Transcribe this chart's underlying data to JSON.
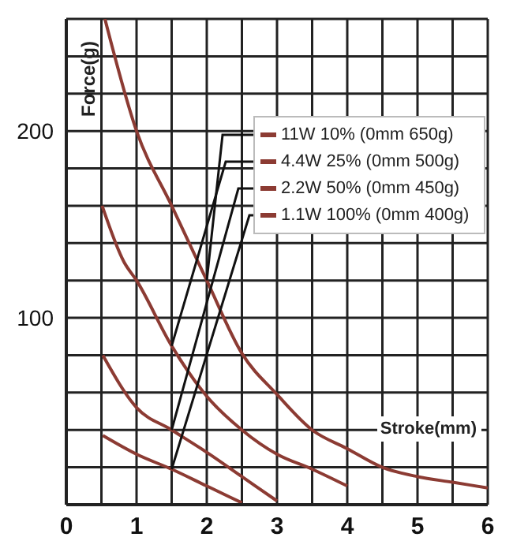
{
  "chart_data": {
    "type": "line",
    "xlabel": "Stroke(mm)",
    "ylabel": "Force(g)",
    "xlim": [
      0,
      6
    ],
    "ylim": [
      0,
      260
    ],
    "xticks": [
      0,
      {
        "value": 0.5,
        "label": null
      },
      1,
      {
        "value": 1.5,
        "label": null
      },
      2,
      {
        "value": 2.5,
        "label": null
      },
      3,
      {
        "value": 3.5,
        "label": null
      },
      4,
      {
        "value": 4.5,
        "label": null
      },
      5,
      {
        "value": 5.5,
        "label": null
      },
      6
    ],
    "yticks": [
      {
        "value": 0,
        "label": null
      },
      {
        "value": 20,
        "label": null
      },
      {
        "value": 40,
        "label": null
      },
      {
        "value": 60,
        "label": null
      },
      {
        "value": 80,
        "label": null
      },
      100,
      {
        "value": 120,
        "label": null
      },
      {
        "value": 140,
        "label": null
      },
      {
        "value": 160,
        "label": null
      },
      {
        "value": 180,
        "label": null
      },
      200,
      {
        "value": 220,
        "label": null
      },
      {
        "value": 240,
        "label": null
      },
      {
        "value": 260,
        "label": null
      }
    ],
    "grid": true,
    "legend": "top right",
    "series": [
      {
        "name": "11W 10% (0mm 650g)",
        "color": "#8c3b33",
        "x": [
          0.55,
          1,
          1.5,
          2,
          2.5,
          3,
          3.5,
          4,
          4.5,
          5,
          5.5,
          6
        ],
        "values": [
          260,
          200,
          160,
          120,
          81,
          59,
          40,
          30,
          20,
          15,
          12,
          9
        ]
      },
      {
        "name": "4.4W 25% (0mm 500g)",
        "color": "#8c3b33",
        "x": [
          0.51,
          0.82,
          1,
          1.5,
          2,
          2.5,
          3,
          3.5,
          4
        ],
        "values": [
          160,
          130,
          120,
          85,
          58,
          40,
          27,
          19,
          10
        ]
      },
      {
        "name": "2.2W 50% (0mm 450g)",
        "color": "#8c3b33",
        "x": [
          0.52,
          1,
          1.5,
          2,
          2.5,
          3
        ],
        "values": [
          80,
          52,
          40,
          28,
          15,
          2
        ]
      },
      {
        "name": "1.1W 100% (0mm 400g)",
        "color": "#8c3b33",
        "x": [
          0.52,
          1,
          1.5,
          2,
          2.5
        ],
        "values": [
          37,
          27,
          19,
          10,
          1
        ]
      }
    ]
  }
}
